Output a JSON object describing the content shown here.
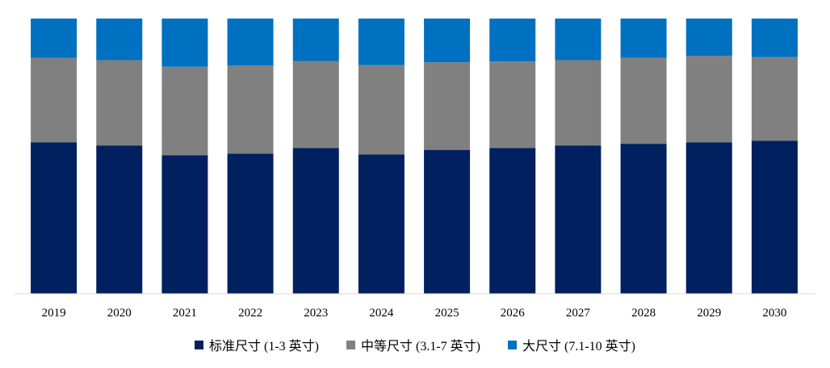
{
  "chart_data": {
    "type": "bar",
    "stacked": "percent",
    "categories": [
      "2019",
      "2020",
      "2021",
      "2022",
      "2023",
      "2024",
      "2025",
      "2026",
      "2027",
      "2028",
      "2029",
      "2030"
    ],
    "series": [
      {
        "name": "标准尺寸 (1-3 英寸)",
        "color": "#002060",
        "values": [
          55.0,
          53.9,
          50.3,
          50.9,
          53.0,
          50.6,
          52.3,
          53.0,
          53.9,
          54.5,
          55.0,
          55.6
        ]
      },
      {
        "name": "中等尺寸 (3.1-7 英寸)",
        "color": "#808080",
        "values": [
          30.7,
          31.0,
          32.2,
          32.1,
          31.6,
          32.5,
          31.8,
          31.4,
          31.0,
          31.3,
          31.5,
          30.4
        ]
      },
      {
        "name": "大尺寸 (7.1-10 英寸)",
        "color": "#0070C0",
        "values": [
          14.3,
          15.1,
          17.5,
          17.0,
          15.4,
          16.9,
          15.9,
          15.6,
          15.1,
          14.2,
          13.5,
          14.0
        ]
      }
    ],
    "ylim": [
      0,
      100
    ],
    "grid": false,
    "legend_position": "bottom",
    "title": "",
    "xlabel": "",
    "ylabel": ""
  }
}
